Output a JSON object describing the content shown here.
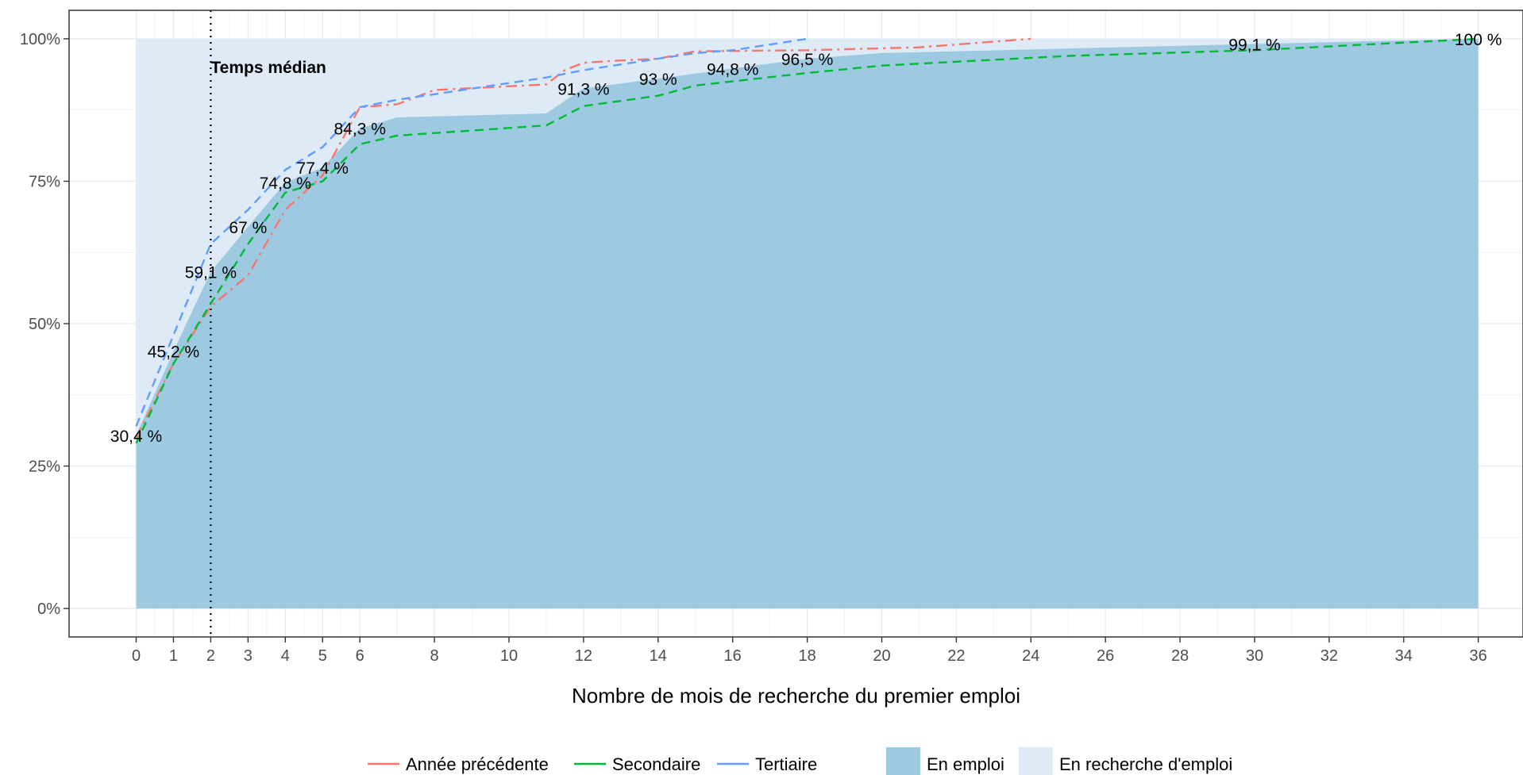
{
  "chart_data": {
    "type": "line",
    "xlabel": "Nombre de mois de recherche du premier emploi",
    "ylabel": "",
    "xlim": [
      -1.8,
      37.2
    ],
    "ylim": [
      -0.05,
      1.05
    ],
    "x_ticks": [
      0,
      1,
      2,
      3,
      4,
      5,
      6,
      8,
      10,
      12,
      14,
      16,
      18,
      20,
      22,
      24,
      26,
      28,
      30,
      32,
      34,
      36
    ],
    "y_ticks": [
      0,
      0.25,
      0.5,
      0.75,
      1.0
    ],
    "y_tick_labels": [
      "0%",
      "25%",
      "50%",
      "75%",
      "100%"
    ],
    "grid": true,
    "legend_position": "bottom",
    "colors": {
      "annee_precedente": "#F8766D",
      "secondaire": "#00BA38",
      "tertiaire": "#619CFF",
      "en_emploi": "#9ECAE1",
      "en_recherche": "#DEEBF7",
      "median_line": "#000000"
    },
    "median": {
      "x": 2,
      "label": "Temps médian"
    },
    "areas": [
      {
        "name": "En emploi",
        "x": [
          0,
          1,
          2,
          3,
          4,
          5,
          6,
          7,
          11,
          12,
          14,
          16,
          18,
          20,
          30,
          36
        ],
        "y": [
          0.304,
          0.452,
          0.591,
          0.67,
          0.748,
          0.774,
          0.843,
          0.862,
          0.869,
          0.913,
          0.93,
          0.948,
          0.965,
          0.975,
          0.991,
          1.0
        ]
      },
      {
        "name": "En recherche d'emploi",
        "x": [
          0,
          36
        ],
        "y": [
          1.0,
          1.0
        ]
      }
    ],
    "series": [
      {
        "name": "Année précédente",
        "dash": "dashdot",
        "x": [
          0,
          1,
          2,
          3,
          4,
          5,
          6,
          7,
          8,
          11,
          11.5,
          12,
          13,
          14,
          15,
          18,
          21,
          22,
          24
        ],
        "y": [
          0.3,
          0.43,
          0.53,
          0.585,
          0.7,
          0.76,
          0.88,
          0.885,
          0.91,
          0.92,
          0.945,
          0.958,
          0.962,
          0.965,
          0.978,
          0.98,
          0.985,
          0.99,
          1.0
        ]
      },
      {
        "name": "Secondaire",
        "dash": "dashed",
        "x": [
          0,
          1,
          2,
          3,
          4,
          5,
          6,
          7,
          11,
          12,
          14,
          15,
          18,
          20,
          25,
          30,
          36
        ],
        "y": [
          0.29,
          0.43,
          0.535,
          0.64,
          0.73,
          0.75,
          0.815,
          0.83,
          0.848,
          0.882,
          0.9,
          0.918,
          0.94,
          0.953,
          0.97,
          0.98,
          1.0
        ]
      },
      {
        "name": "Tertiaire",
        "dash": "dashed",
        "x": [
          0,
          1,
          2,
          3,
          4,
          5,
          6,
          7,
          11,
          12,
          14,
          15,
          16,
          18
        ],
        "y": [
          0.32,
          0.48,
          0.64,
          0.7,
          0.77,
          0.81,
          0.88,
          0.893,
          0.932,
          0.945,
          0.965,
          0.975,
          0.98,
          1.0
        ]
      }
    ],
    "data_labels": [
      {
        "text": "30,4 %",
        "x": 0,
        "y": 0.304
      },
      {
        "text": "45,2 %",
        "x": 1,
        "y": 0.452
      },
      {
        "text": "59,1 %",
        "x": 2,
        "y": 0.591
      },
      {
        "text": "67 %",
        "x": 3,
        "y": 0.67
      },
      {
        "text": "74,8 %",
        "x": 4,
        "y": 0.748
      },
      {
        "text": "77,4 %",
        "x": 5,
        "y": 0.774
      },
      {
        "text": "84,3 %",
        "x": 6,
        "y": 0.843
      },
      {
        "text": "91,3 %",
        "x": 12,
        "y": 0.913
      },
      {
        "text": "93 %",
        "x": 14,
        "y": 0.93
      },
      {
        "text": "94,8 %",
        "x": 16,
        "y": 0.948
      },
      {
        "text": "96,5 %",
        "x": 18,
        "y": 0.965
      },
      {
        "text": "99,1 %",
        "x": 30,
        "y": 0.991
      },
      {
        "text": "100 %",
        "x": 36,
        "y": 1.0
      }
    ],
    "legend": {
      "lines": [
        "Année précédente",
        "Secondaire",
        "Tertiaire"
      ],
      "fills": [
        "En emploi",
        "En recherche d'emploi"
      ]
    }
  }
}
